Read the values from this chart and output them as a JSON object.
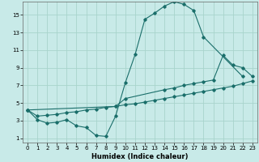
{
  "xlabel": "Humidex (Indice chaleur)",
  "bg_color": "#c8eae8",
  "grid_color": "#a8d4cc",
  "line_color": "#1a6e6a",
  "xlim": [
    -0.5,
    23.5
  ],
  "ylim": [
    0.5,
    16.5
  ],
  "xticks": [
    0,
    1,
    2,
    3,
    4,
    5,
    6,
    7,
    8,
    9,
    10,
    11,
    12,
    13,
    14,
    15,
    16,
    17,
    18,
    19,
    20,
    21,
    22,
    23
  ],
  "yticks": [
    1,
    3,
    5,
    7,
    9,
    11,
    13,
    15
  ],
  "line1_x": [
    0,
    1,
    2,
    3,
    4,
    5,
    6,
    7,
    8,
    9,
    10,
    11,
    12,
    13,
    14,
    15,
    16,
    17,
    18,
    22
  ],
  "line1_y": [
    4.2,
    3.1,
    2.7,
    2.8,
    3.1,
    2.4,
    2.2,
    1.3,
    1.2,
    3.5,
    7.3,
    10.5,
    14.5,
    15.2,
    16.0,
    16.5,
    16.2,
    15.5,
    12.5,
    8.0
  ],
  "line2_x": [
    0,
    1,
    2,
    3,
    4,
    5,
    6,
    7,
    8,
    9,
    10,
    11,
    12,
    13,
    14,
    15,
    16,
    17,
    18,
    19,
    20,
    21,
    22,
    23
  ],
  "line2_y": [
    4.2,
    3.5,
    3.6,
    3.7,
    3.9,
    4.0,
    4.2,
    4.3,
    4.5,
    4.6,
    4.8,
    4.9,
    5.1,
    5.3,
    5.5,
    5.7,
    5.9,
    6.1,
    6.3,
    6.5,
    6.7,
    6.9,
    7.2,
    7.5
  ],
  "line3_x": [
    0,
    9,
    10,
    14,
    15,
    16,
    17,
    18,
    19,
    20,
    21,
    22,
    23
  ],
  "line3_y": [
    4.2,
    4.6,
    5.5,
    6.5,
    6.7,
    7.0,
    7.2,
    7.4,
    7.6,
    10.4,
    9.3,
    9.0,
    8.0
  ]
}
